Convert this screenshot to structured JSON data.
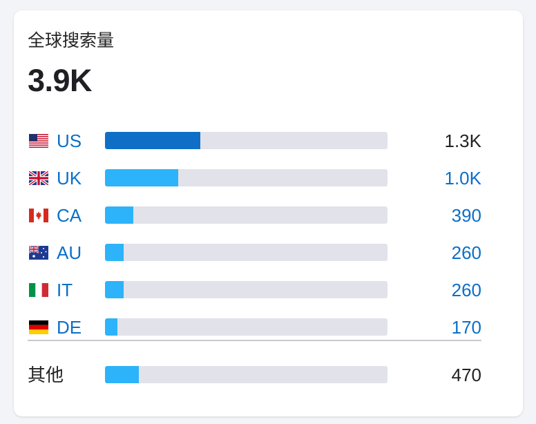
{
  "card": {
    "title": "全球搜索量",
    "total": "3.9K"
  },
  "colors": {
    "primary_bar": "#0f6fc6",
    "secondary_bar": "#2db3f9",
    "track": "#e1e2ea",
    "link": "#0a6fc9",
    "text": "#222222"
  },
  "countries": [
    {
      "code": "US",
      "flag": "us-flag-icon",
      "value": "1.3K",
      "share": 0.337,
      "value_style": "plain",
      "bar_style": "primary"
    },
    {
      "code": "UK",
      "flag": "uk-flag-icon",
      "value": "1.0K",
      "share": 0.259,
      "value_style": "link",
      "bar_style": "secondary"
    },
    {
      "code": "CA",
      "flag": "ca-flag-icon",
      "value": "390",
      "share": 0.1,
      "value_style": "link",
      "bar_style": "secondary"
    },
    {
      "code": "AU",
      "flag": "au-flag-icon",
      "value": "260",
      "share": 0.067,
      "value_style": "link",
      "bar_style": "secondary"
    },
    {
      "code": "IT",
      "flag": "it-flag-icon",
      "value": "260",
      "share": 0.067,
      "value_style": "link",
      "bar_style": "secondary"
    },
    {
      "code": "DE",
      "flag": "de-flag-icon",
      "value": "170",
      "share": 0.044,
      "value_style": "link",
      "bar_style": "secondary"
    }
  ],
  "other": {
    "label": "其他",
    "value": "470",
    "share": 0.121
  }
}
